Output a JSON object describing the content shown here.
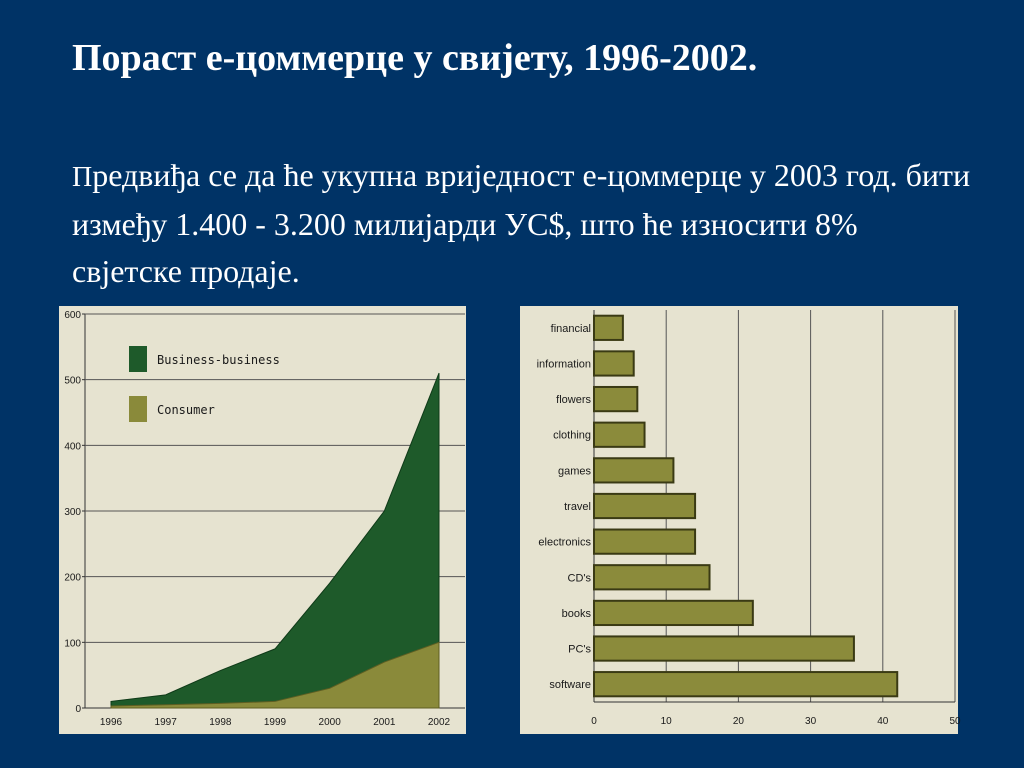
{
  "slide": {
    "title": "Пораст е-цоммерце у свијету, 1996-2002.",
    "body_first_letter": "П",
    "body_rest": "редвиђа се да ће укупна вриједност е-цоммерце у 2003 год. бити између 1.400 - 3.200 милијарди УС$, што ће износити 8% свјетске продаје.",
    "background_color": "#003366"
  },
  "chart_data": [
    {
      "type": "area",
      "stacked": true,
      "x": [
        "1996",
        "1997",
        "1998",
        "1999",
        "2000",
        "2001",
        "2002"
      ],
      "series": [
        {
          "name": "Consumer",
          "values": [
            3,
            5,
            7,
            10,
            30,
            70,
            100
          ],
          "color": "#8a8a3a"
        },
        {
          "name": "Business-business",
          "values": [
            7,
            15,
            50,
            80,
            160,
            230,
            410
          ],
          "color": "#1e5a2a"
        }
      ],
      "yticks": [
        0,
        100,
        200,
        300,
        400,
        500,
        600
      ],
      "ylim": [
        0,
        600
      ],
      "legend_position": "top-left",
      "grid": "horizontal"
    },
    {
      "type": "bar",
      "orientation": "horizontal",
      "categories": [
        "financial",
        "information",
        "flowers",
        "clothing",
        "games",
        "travel",
        "electronics",
        "CD's",
        "books",
        "PC's",
        "software"
      ],
      "values": [
        4,
        5.5,
        6,
        7,
        11,
        14,
        14,
        16,
        22,
        36,
        42
      ],
      "xticks": [
        0,
        10,
        20,
        30,
        40,
        50
      ],
      "xlim": [
        0,
        50
      ],
      "bar_color": "#8b8b3b",
      "grid": "vertical"
    }
  ]
}
